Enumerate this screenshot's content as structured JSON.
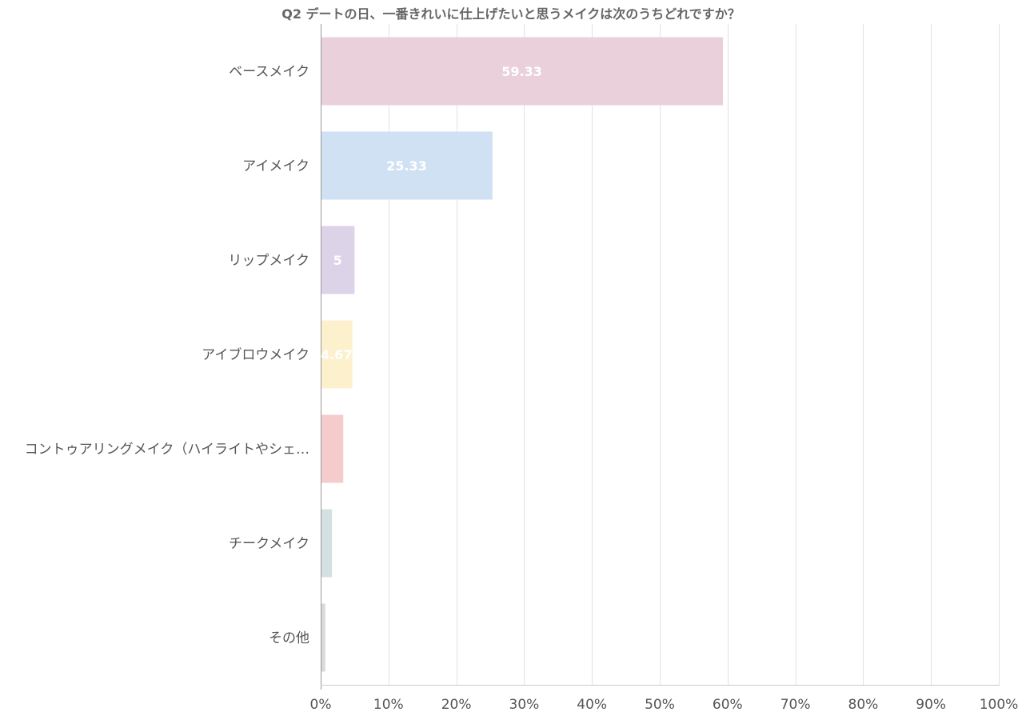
{
  "chart_data": {
    "type": "bar",
    "orientation": "horizontal",
    "title": "Q2 デートの日、一番きれいに仕上げたいと思うメイクは次のうちどれですか？",
    "categories": [
      "ベースメイク",
      "アイメイク",
      "リップメイク",
      "アイブロウメイク",
      "コントゥアリングメイク（ハイライトやシェ…",
      "チークメイク",
      "その他"
    ],
    "values": [
      59.33,
      25.33,
      5,
      4.67,
      3.33,
      1.67,
      0.67
    ],
    "data_labels": [
      "59.33",
      "25.33",
      "5",
      "4.67",
      "",
      "",
      ""
    ],
    "colors": [
      "#e9d0db",
      "#cfe1f2",
      "#dcd3e8",
      "#fdf1cd",
      "#f4cccc",
      "#d4e1e2",
      "#d9d9d9"
    ],
    "xlim": [
      0,
      100
    ],
    "xticks": [
      "0%",
      "10%",
      "20%",
      "30%",
      "40%",
      "50%",
      "60%",
      "70%",
      "80%",
      "90%",
      "100%"
    ],
    "grid": true,
    "legend": "none"
  }
}
